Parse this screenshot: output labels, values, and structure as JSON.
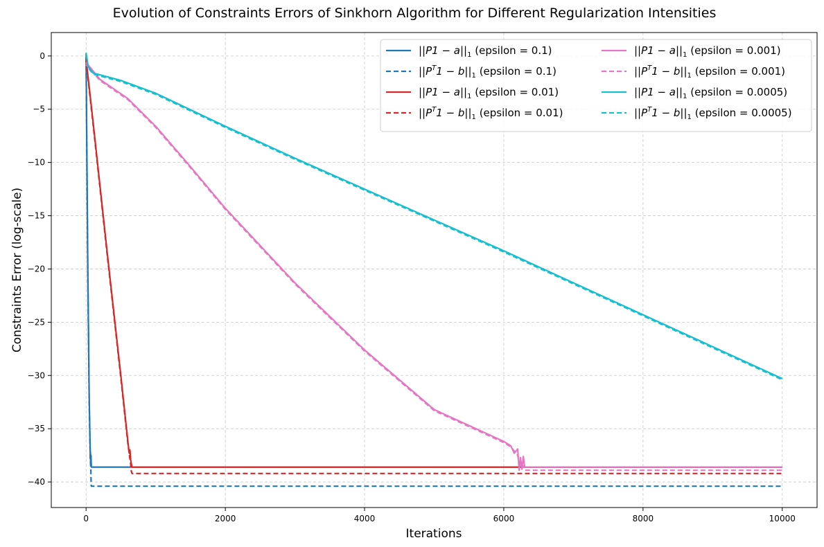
{
  "chart_data": {
    "type": "line",
    "title": "Evolution of Constraints Errors of Sinkhorn Algorithm for Different Regularization Intensities",
    "xlabel": "Iterations",
    "ylabel": "Constraints Error (log-scale)",
    "xlim": [
      -500,
      10500
    ],
    "ylim": [
      -42.4,
      2.2
    ],
    "xticks": [
      0,
      2000,
      4000,
      6000,
      8000,
      10000
    ],
    "yticks": [
      0,
      -5,
      -10,
      -15,
      -20,
      -25,
      -30,
      -35,
      -40
    ],
    "xtick_labels": [
      "0",
      "2000",
      "4000",
      "6000",
      "8000",
      "10000"
    ],
    "ytick_labels": [
      "0",
      "−5",
      "−10",
      "−15",
      "−20",
      "−25",
      "−30",
      "−35",
      "−40"
    ],
    "grid": true,
    "legend_position": "top-right",
    "legend_columns": 2,
    "series": [
      {
        "name": "||P1 − a||₁ (epsilon = 0.1)",
        "legend": {
          "pre": "||P1 − a||",
          "sub": "1",
          "sup": "",
          "post": "",
          "tail": " (epsilon = 0.1)"
        },
        "color": "#1f77b4",
        "dash": "solid",
        "x": [
          0,
          10,
          25,
          45,
          60,
          62,
          65,
          70,
          75,
          80,
          10000
        ],
        "y": [
          0.2,
          -8,
          -20,
          -32,
          -37.8,
          -37.2,
          -38.3,
          -37.5,
          -38.6,
          -38.6,
          -38.6
        ]
      },
      {
        "name": "||Pᵀ1 − b||₁ (epsilon = 0.1)",
        "legend": {
          "pre": "||P",
          "sub": "",
          "sup": "T",
          "post": "1 − b||",
          "sub2": "1",
          "tail": " (epsilon = 0.1)"
        },
        "color": "#1f77b4",
        "dash": "dashed",
        "x": [
          0,
          10,
          25,
          45,
          60,
          68,
          72,
          75,
          80,
          10000
        ],
        "y": [
          -0.2,
          -8.5,
          -20.5,
          -32.5,
          -37.9,
          -38.8,
          -40.2,
          -40.4,
          -40.4,
          -40.4
        ]
      },
      {
        "name": "||P1 − a||₁ (epsilon = 0.01)",
        "legend": {
          "pre": "||P1 − a||",
          "sub": "1",
          "sup": "",
          "post": "",
          "tail": " (epsilon = 0.01)"
        },
        "color": "#d62728",
        "dash": "solid",
        "x": [
          0,
          100,
          300,
          500,
          600,
          620,
          630,
          640,
          650,
          660,
          10000
        ],
        "y": [
          -0.3,
          -6.2,
          -18.3,
          -30.1,
          -36.2,
          -37.3,
          -37.0,
          -37.9,
          -38.3,
          -38.6,
          -38.6
        ]
      },
      {
        "name": "||Pᵀ1 − b||₁ (epsilon = 0.01)",
        "legend": {
          "pre": "||P",
          "sub": "",
          "sup": "T",
          "post": "1 − b||",
          "sub2": "1",
          "tail": " (epsilon = 0.01)"
        },
        "color": "#d62728",
        "dash": "dashed",
        "x": [
          0,
          100,
          300,
          500,
          600,
          625,
          640,
          650,
          660,
          10000
        ],
        "y": [
          -0.5,
          -6.4,
          -18.5,
          -30.3,
          -36.4,
          -37.6,
          -38.3,
          -39.0,
          -39.2,
          -39.2
        ]
      },
      {
        "name": "||P1 − a||₁ (epsilon = 0.001)",
        "legend": {
          "pre": "||P1 − a||",
          "sub": "1",
          "sup": "",
          "post": "",
          "tail": " (epsilon = 0.001)"
        },
        "color": "#e377c2",
        "dash": "solid",
        "x": [
          0,
          200,
          600,
          1000,
          1500,
          2000,
          3000,
          4000,
          5000,
          5800,
          6000,
          6100,
          6150,
          6200,
          6220,
          6240,
          6260,
          6280,
          6300,
          10000
        ],
        "y": [
          -0.6,
          -2.2,
          -4.0,
          -6.6,
          -10.4,
          -14.3,
          -21.3,
          -27.6,
          -33.2,
          -35.6,
          -36.2,
          -36.6,
          -37.3,
          -36.9,
          -38.9,
          -37.7,
          -38.8,
          -37.6,
          -38.6,
          -38.6
        ]
      },
      {
        "name": "||Pᵀ1 − b||₁ (epsilon = 0.001)",
        "legend": {
          "pre": "||P",
          "sub": "",
          "sup": "T",
          "post": "1 − b||",
          "sub2": "1",
          "tail": " (epsilon = 0.001)"
        },
        "color": "#e377c2",
        "dash": "dashed",
        "x": [
          0,
          200,
          600,
          1000,
          1500,
          2000,
          3000,
          4000,
          5000,
          5800,
          6000,
          6100,
          6200,
          6240,
          6280,
          6300,
          10000
        ],
        "y": [
          -0.8,
          -2.3,
          -4.1,
          -6.7,
          -10.5,
          -14.4,
          -21.4,
          -27.7,
          -33.3,
          -35.7,
          -36.3,
          -36.7,
          -37.5,
          -38.7,
          -38.5,
          -38.9,
          -38.9
        ]
      },
      {
        "name": "||P1 − a||₁ (epsilon = 0.0005)",
        "legend": {
          "pre": "||P1 − a||",
          "sub": "1",
          "sup": "",
          "post": "",
          "tail": " (epsilon = 0.0005)"
        },
        "color": "#17becf",
        "dash": "solid",
        "x": [
          0,
          30,
          100,
          500,
          1000,
          2000,
          3000,
          4000,
          5000,
          6000,
          7000,
          8000,
          9000,
          10000
        ],
        "y": [
          0.3,
          -1.0,
          -1.6,
          -2.3,
          -3.5,
          -6.6,
          -9.6,
          -12.5,
          -15.4,
          -18.3,
          -21.3,
          -24.3,
          -27.3,
          -30.3
        ]
      },
      {
        "name": "||Pᵀ1 − b||₁ (epsilon = 0.0005)",
        "legend": {
          "pre": "||P",
          "sub": "",
          "sup": "T",
          "post": "1 − b||",
          "sub2": "1",
          "tail": " (epsilon = 0.0005)"
        },
        "color": "#17becf",
        "dash": "dashed",
        "x": [
          0,
          30,
          100,
          500,
          1000,
          2000,
          3000,
          4000,
          5000,
          6000,
          7000,
          8000,
          9000,
          10000
        ],
        "y": [
          0.2,
          -1.1,
          -1.7,
          -2.4,
          -3.6,
          -6.7,
          -9.7,
          -12.6,
          -15.5,
          -18.4,
          -21.4,
          -24.4,
          -27.4,
          -30.4
        ]
      }
    ]
  }
}
